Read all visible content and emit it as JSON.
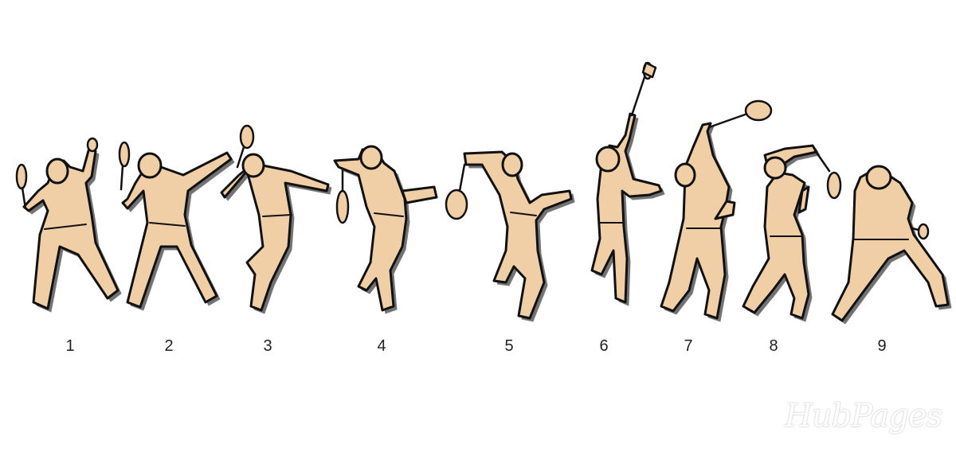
{
  "steps": [
    {
      "label": "1"
    },
    {
      "label": "2"
    },
    {
      "label": "3"
    },
    {
      "label": "4"
    },
    {
      "label": "5"
    },
    {
      "label": "6"
    },
    {
      "label": "7"
    },
    {
      "label": "8"
    },
    {
      "label": "9"
    }
  ],
  "watermark": "HubPages",
  "colors": {
    "skin": "#f0cfa6",
    "outline": "#111111",
    "background": "#ffffff"
  }
}
